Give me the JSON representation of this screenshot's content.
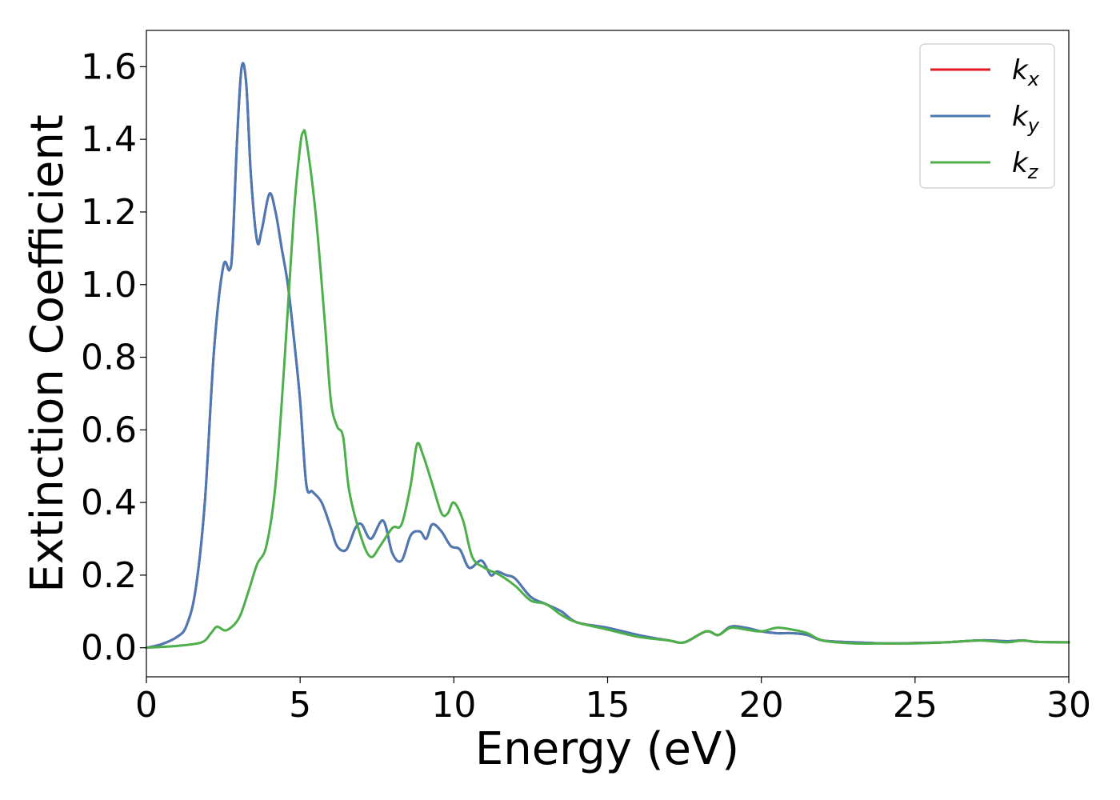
{
  "chart_data": {
    "type": "line",
    "title": "",
    "xlabel": "Energy (eV)",
    "ylabel": "Extinction Coefficient",
    "xlim": [
      0,
      30
    ],
    "ylim": [
      -0.08,
      1.7
    ],
    "xticks": [
      0,
      5,
      10,
      15,
      20,
      25,
      30
    ],
    "xtick_labels": [
      "0",
      "5",
      "10",
      "15",
      "20",
      "25",
      "30"
    ],
    "yticks": [
      0.0,
      0.2,
      0.4,
      0.6,
      0.8,
      1.0,
      1.2,
      1.4,
      1.6
    ],
    "ytick_labels": [
      "0.0",
      "0.2",
      "0.4",
      "0.6",
      "0.8",
      "1.0",
      "1.2",
      "1.4",
      "1.6"
    ],
    "grid": false,
    "legend_position": "top-right",
    "series": [
      {
        "id": "kx",
        "legend_main": "k",
        "legend_sub": "x",
        "color": "#e41a1c",
        "x": [
          0,
          0.5,
          1.0,
          1.3,
          1.6,
          1.9,
          2.2,
          2.5,
          2.7,
          2.8,
          2.95,
          3.1,
          3.25,
          3.4,
          3.6,
          3.75,
          4.0,
          4.2,
          4.4,
          4.6,
          4.8,
          5.0,
          5.2,
          5.4,
          5.7,
          6.0,
          6.2,
          6.5,
          6.8,
          7.0,
          7.3,
          7.7,
          8.0,
          8.3,
          8.6,
          8.9,
          9.1,
          9.3,
          9.6,
          9.9,
          10.2,
          10.5,
          10.9,
          11.2,
          11.4,
          11.7,
          12.0,
          12.5,
          13.0,
          13.5,
          14.0,
          15.0,
          16.0,
          17.0,
          17.5,
          18.2,
          18.6,
          19.0,
          19.5,
          20.0,
          20.5,
          21.0,
          21.5,
          22.0,
          23.0,
          24.0,
          25.0,
          26.0,
          27.0,
          27.5,
          28.0,
          28.5,
          29.0,
          30.0
        ],
        "y": [
          0.0,
          0.01,
          0.03,
          0.06,
          0.16,
          0.4,
          0.82,
          1.05,
          1.04,
          1.1,
          1.4,
          1.6,
          1.55,
          1.3,
          1.12,
          1.15,
          1.25,
          1.2,
          1.1,
          1.0,
          0.85,
          0.68,
          0.45,
          0.43,
          0.4,
          0.33,
          0.28,
          0.27,
          0.33,
          0.34,
          0.3,
          0.35,
          0.26,
          0.24,
          0.31,
          0.32,
          0.3,
          0.34,
          0.32,
          0.28,
          0.27,
          0.22,
          0.24,
          0.2,
          0.21,
          0.2,
          0.19,
          0.14,
          0.12,
          0.1,
          0.07,
          0.055,
          0.035,
          0.02,
          0.015,
          0.045,
          0.035,
          0.058,
          0.055,
          0.045,
          0.04,
          0.04,
          0.035,
          0.02,
          0.015,
          0.012,
          0.013,
          0.015,
          0.02,
          0.02,
          0.018,
          0.02,
          0.016,
          0.015
        ]
      },
      {
        "id": "ky",
        "legend_main": "k",
        "legend_sub": "y",
        "color": "#4a7ab5",
        "x": [
          0,
          0.5,
          1.0,
          1.3,
          1.6,
          1.9,
          2.2,
          2.5,
          2.7,
          2.8,
          2.95,
          3.1,
          3.25,
          3.4,
          3.6,
          3.75,
          4.0,
          4.2,
          4.4,
          4.6,
          4.8,
          5.0,
          5.2,
          5.4,
          5.7,
          6.0,
          6.2,
          6.5,
          6.8,
          7.0,
          7.3,
          7.7,
          8.0,
          8.3,
          8.6,
          8.9,
          9.1,
          9.3,
          9.6,
          9.9,
          10.2,
          10.5,
          10.9,
          11.2,
          11.4,
          11.7,
          12.0,
          12.5,
          13.0,
          13.5,
          14.0,
          15.0,
          16.0,
          17.0,
          17.5,
          18.2,
          18.6,
          19.0,
          19.5,
          20.0,
          20.5,
          21.0,
          21.5,
          22.0,
          23.0,
          24.0,
          25.0,
          26.0,
          27.0,
          27.5,
          28.0,
          28.5,
          29.0,
          30.0
        ],
        "y": [
          0.0,
          0.01,
          0.03,
          0.06,
          0.16,
          0.4,
          0.82,
          1.05,
          1.04,
          1.1,
          1.4,
          1.6,
          1.55,
          1.3,
          1.12,
          1.15,
          1.25,
          1.2,
          1.1,
          1.0,
          0.85,
          0.68,
          0.45,
          0.43,
          0.4,
          0.33,
          0.28,
          0.27,
          0.33,
          0.34,
          0.3,
          0.35,
          0.26,
          0.24,
          0.31,
          0.32,
          0.3,
          0.34,
          0.32,
          0.28,
          0.27,
          0.22,
          0.24,
          0.2,
          0.21,
          0.2,
          0.19,
          0.14,
          0.12,
          0.1,
          0.07,
          0.055,
          0.035,
          0.02,
          0.015,
          0.045,
          0.035,
          0.058,
          0.055,
          0.045,
          0.04,
          0.04,
          0.035,
          0.02,
          0.015,
          0.012,
          0.013,
          0.015,
          0.02,
          0.02,
          0.018,
          0.02,
          0.016,
          0.015
        ]
      },
      {
        "id": "kz",
        "legend_main": "k",
        "legend_sub": "z",
        "color": "#4daf4a",
        "x": [
          0,
          1.0,
          1.8,
          2.1,
          2.3,
          2.6,
          3.0,
          3.3,
          3.6,
          3.9,
          4.2,
          4.5,
          4.8,
          5.0,
          5.1,
          5.2,
          5.5,
          5.8,
          6.0,
          6.2,
          6.4,
          6.6,
          7.0,
          7.3,
          7.6,
          8.0,
          8.3,
          8.6,
          8.8,
          9.0,
          9.3,
          9.6,
          9.8,
          10.0,
          10.3,
          10.6,
          11.0,
          11.5,
          12.0,
          12.5,
          13.0,
          13.5,
          14.0,
          15.0,
          16.0,
          17.0,
          17.5,
          18.2,
          18.6,
          19.0,
          19.5,
          20.0,
          20.5,
          21.0,
          21.5,
          22.0,
          23.0,
          24.0,
          25.0,
          26.0,
          27.0,
          27.5,
          28.0,
          28.5,
          29.0,
          30.0
        ],
        "y": [
          0.0,
          0.005,
          0.015,
          0.04,
          0.058,
          0.048,
          0.08,
          0.15,
          0.23,
          0.28,
          0.45,
          0.8,
          1.2,
          1.38,
          1.42,
          1.4,
          1.2,
          0.9,
          0.68,
          0.61,
          0.58,
          0.43,
          0.3,
          0.25,
          0.28,
          0.33,
          0.34,
          0.45,
          0.56,
          0.53,
          0.45,
          0.37,
          0.37,
          0.4,
          0.35,
          0.25,
          0.22,
          0.2,
          0.17,
          0.13,
          0.12,
          0.09,
          0.07,
          0.05,
          0.03,
          0.02,
          0.015,
          0.045,
          0.035,
          0.055,
          0.05,
          0.045,
          0.055,
          0.05,
          0.04,
          0.02,
          0.012,
          0.012,
          0.012,
          0.015,
          0.02,
          0.018,
          0.015,
          0.02,
          0.016,
          0.015
        ]
      }
    ]
  }
}
